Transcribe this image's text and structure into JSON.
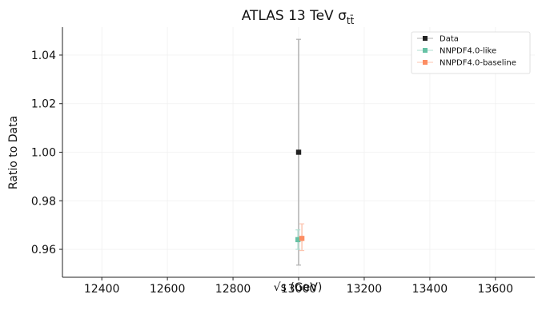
{
  "chart_data": {
    "type": "scatter",
    "title": "ATLAS 13 TeV σ",
    "title_subscript": "tt̄",
    "xlabel": "√s (GeV)",
    "ylabel": "Ratio to Data",
    "xlim": [
      12280,
      13720
    ],
    "ylim": [
      0.9485,
      1.0515
    ],
    "xticks": [
      12400,
      12600,
      12800,
      13000,
      13200,
      13400,
      13600
    ],
    "yticks": [
      0.96,
      0.98,
      1.0,
      1.02,
      1.04
    ],
    "ytick_labels": [
      "0.96",
      "0.98",
      "1.00",
      "1.02",
      "1.04"
    ],
    "grid": true,
    "legend_position": "top-right",
    "series": [
      {
        "name": "Data",
        "color": "#222222",
        "errcolor": "#b0b0b0",
        "points": [
          {
            "x": 13000,
            "y": 1.0,
            "yerr_low": 0.9535,
            "yerr_high": 1.0465
          }
        ]
      },
      {
        "name": "NNPDF4.0-like",
        "color": "#66c2a5",
        "errcolor": "#b2dfd2",
        "points": [
          {
            "x": 12998,
            "y": 0.964,
            "yerr_low": 0.96,
            "yerr_high": 0.968
          }
        ]
      },
      {
        "name": "NNPDF4.0-baseline",
        "color": "#fc8d62",
        "errcolor": "#fcc5b0",
        "points": [
          {
            "x": 13010,
            "y": 0.9645,
            "yerr_low": 0.9595,
            "yerr_high": 0.9705
          }
        ]
      }
    ]
  }
}
